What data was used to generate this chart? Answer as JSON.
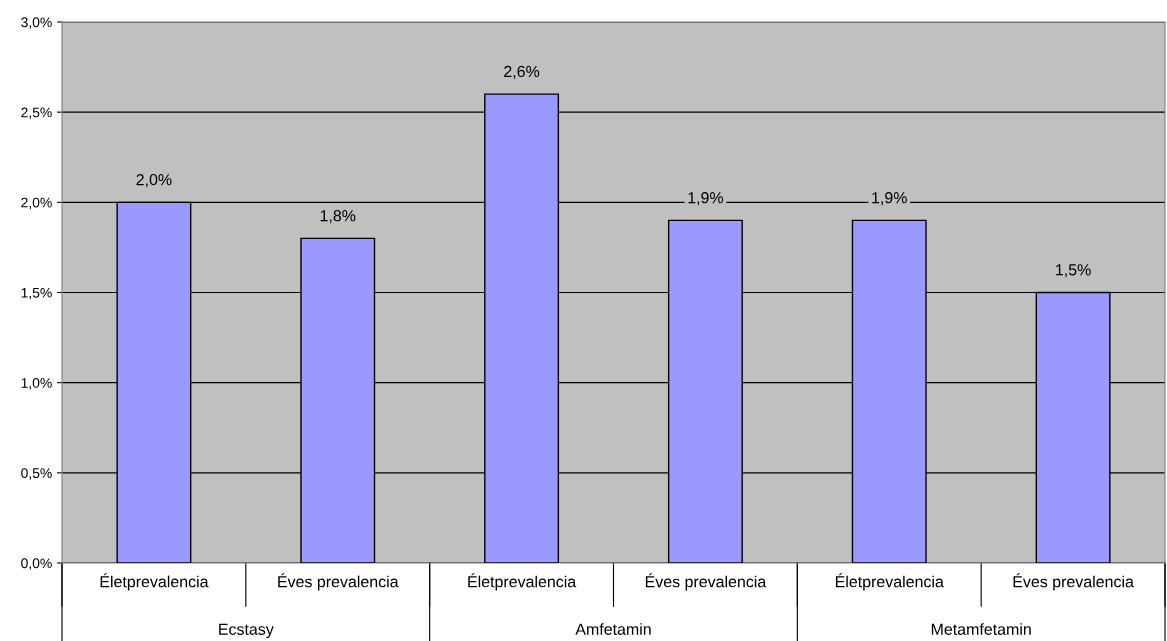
{
  "chart_data": {
    "type": "bar",
    "categories": [
      "Életprevalencia",
      "Éves prevalencia",
      "Életprevalencia",
      "Éves prevalencia",
      "Életprevalencia",
      "Éves prevalencia"
    ],
    "values": [
      2.0,
      1.8,
      2.6,
      1.9,
      1.9,
      1.5
    ],
    "value_labels": [
      "2,0%",
      "1,8%",
      "2,6%",
      "1,9%",
      "1,9%",
      "1,5%"
    ],
    "color": "#9999ff",
    "ylim": [
      0,
      3.0
    ],
    "yticks": [
      {
        "value": 0,
        "label": "0,0%"
      },
      {
        "value": 0.5,
        "label": "0,5%"
      },
      {
        "value": 1.0,
        "label": "1,0%"
      },
      {
        "value": 1.5,
        "label": "1,5%"
      },
      {
        "value": 2.0,
        "label": "2,0%"
      },
      {
        "value": 2.5,
        "label": "2,5%"
      },
      {
        "value": 3.0,
        "label": "3,0%"
      }
    ],
    "grid": "y",
    "legend": false,
    "annotations": [
      "Ecstasy",
      "Amfetamin",
      "Metamfetamin"
    ]
  }
}
